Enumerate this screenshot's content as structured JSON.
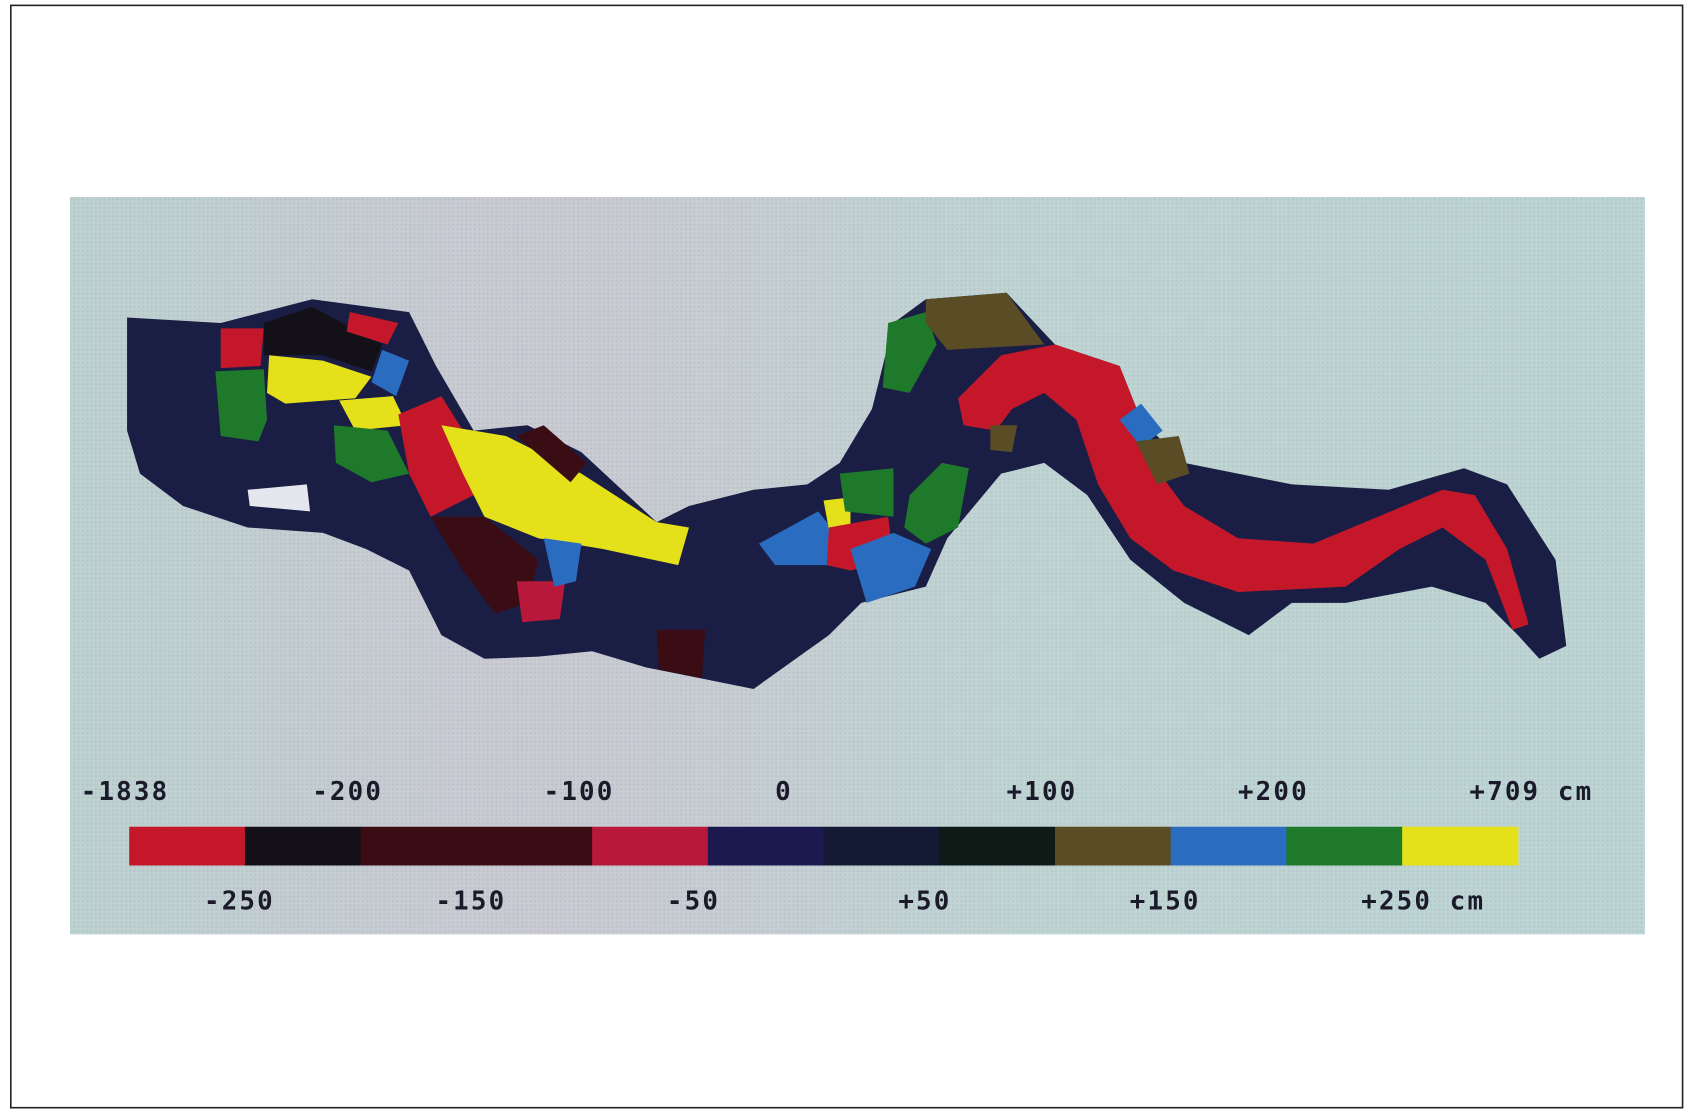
{
  "legend": {
    "top_labels": [
      "-1838",
      "-200",
      "-100",
      "0",
      "+100",
      "+200",
      "+709 cm"
    ],
    "bottom_labels": [
      "-250",
      "-150",
      "-50",
      "+50",
      "+150",
      "+250 cm"
    ],
    "colors": [
      "#c4182a",
      "#141018",
      "#3a0c14",
      "#3a0c14",
      "#b8183a",
      "#1c1850",
      "#141a34",
      "#0e1a16",
      "#5a4c24",
      "#2a6cc0",
      "#1e7a2a",
      "#e4e01a"
    ]
  }
}
